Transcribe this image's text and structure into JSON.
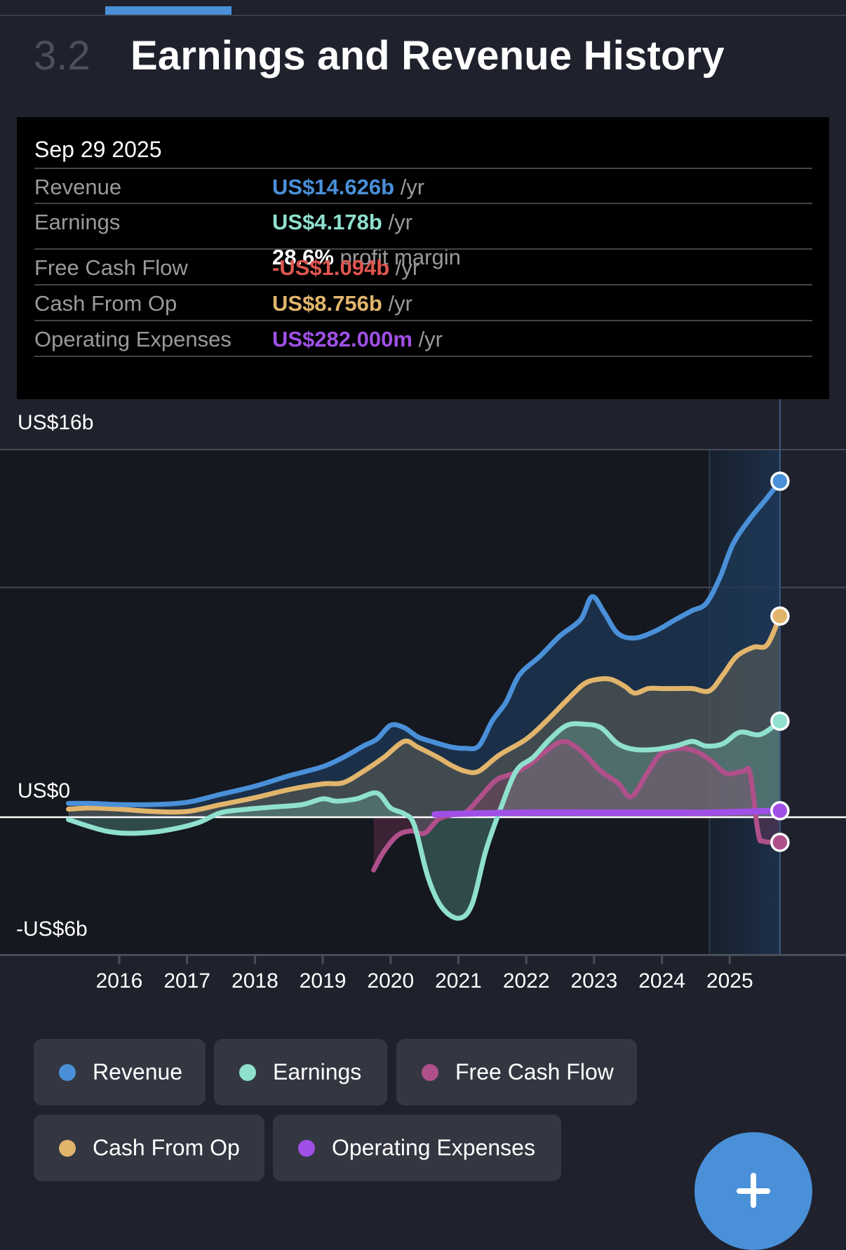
{
  "section": {
    "number": "3.2",
    "title": "Earnings and Revenue History"
  },
  "tooltip": {
    "date": "Sep 29 2025",
    "rows": [
      {
        "label": "Revenue",
        "value": "US$14.626b",
        "unit": "/yr",
        "color": "#4a90d9"
      },
      {
        "label": "Earnings",
        "value": "US$4.178b",
        "unit": "/yr",
        "color": "#8fe0cf",
        "margin_pct": "28.6%",
        "margin_text": "profit margin"
      },
      {
        "label": "Free Cash Flow",
        "value": "-US$1.094b",
        "unit": "/yr",
        "color": "#e0554f"
      },
      {
        "label": "Cash From Op",
        "value": "US$8.756b",
        "unit": "/yr",
        "color": "#e2b56c"
      },
      {
        "label": "Operating Expenses",
        "value": "US$282.000m",
        "unit": "/yr",
        "color": "#a050e6"
      }
    ]
  },
  "legend": [
    {
      "label": "Revenue",
      "color": "#4a90d9"
    },
    {
      "label": "Earnings",
      "color": "#8fe0cf"
    },
    {
      "label": "Free Cash Flow",
      "color": "#b0508a"
    },
    {
      "label": "Cash From Op",
      "color": "#e2b56c"
    },
    {
      "label": "Operating Expenses",
      "color": "#a050e6"
    }
  ],
  "fab": {
    "icon": "plus-icon"
  },
  "chart_data": {
    "type": "line",
    "title": "Earnings and Revenue History",
    "xlabel": "",
    "ylabel": "",
    "y_tick_labels": [
      "US$16b",
      "US$0",
      "-US$6b"
    ],
    "ylim": [
      -6,
      16
    ],
    "y_unit": "US$ billions",
    "gridlines_at": [
      16,
      10
    ],
    "x_tick_labels": [
      "2016",
      "2017",
      "2018",
      "2019",
      "2020",
      "2021",
      "2022",
      "2023",
      "2024",
      "2025"
    ],
    "xlim": [
      2015.25,
      2025.75
    ],
    "highlight_range": [
      2024.7,
      2025.74
    ],
    "cursor_x": 2025.74,
    "legend_position": "bottom",
    "series": [
      {
        "name": "Revenue",
        "color": "#4a90d9",
        "points": [
          [
            2015.25,
            0.6
          ],
          [
            2015.6,
            0.6
          ],
          [
            2016,
            0.55
          ],
          [
            2016.5,
            0.55
          ],
          [
            2017,
            0.65
          ],
          [
            2017.5,
            1.0
          ],
          [
            2018,
            1.35
          ],
          [
            2018.5,
            1.8
          ],
          [
            2019,
            2.2
          ],
          [
            2019.3,
            2.6
          ],
          [
            2019.6,
            3.1
          ],
          [
            2019.8,
            3.4
          ],
          [
            2020,
            4.0
          ],
          [
            2020.2,
            3.9
          ],
          [
            2020.4,
            3.5
          ],
          [
            2020.6,
            3.3
          ],
          [
            2020.9,
            3.05
          ],
          [
            2021.1,
            3.0
          ],
          [
            2021.3,
            3.1
          ],
          [
            2021.5,
            4.2
          ],
          [
            2021.7,
            5.0
          ],
          [
            2021.9,
            6.2
          ],
          [
            2022.2,
            7.0
          ],
          [
            2022.5,
            7.9
          ],
          [
            2022.8,
            8.6
          ],
          [
            2022.97,
            9.6
          ],
          [
            2023.15,
            8.9
          ],
          [
            2023.35,
            8.0
          ],
          [
            2023.6,
            7.8
          ],
          [
            2023.9,
            8.1
          ],
          [
            2024.2,
            8.6
          ],
          [
            2024.45,
            9.0
          ],
          [
            2024.65,
            9.3
          ],
          [
            2024.85,
            10.4
          ],
          [
            2025.05,
            11.9
          ],
          [
            2025.3,
            13.0
          ],
          [
            2025.55,
            13.9
          ],
          [
            2025.74,
            14.626
          ]
        ]
      },
      {
        "name": "Cash From Op",
        "color": "#e2b56c",
        "points": [
          [
            2015.25,
            0.35
          ],
          [
            2015.6,
            0.4
          ],
          [
            2016,
            0.35
          ],
          [
            2016.5,
            0.25
          ],
          [
            2017,
            0.25
          ],
          [
            2017.5,
            0.55
          ],
          [
            2018,
            0.85
          ],
          [
            2018.5,
            1.2
          ],
          [
            2019,
            1.45
          ],
          [
            2019.3,
            1.5
          ],
          [
            2019.6,
            2.0
          ],
          [
            2019.9,
            2.6
          ],
          [
            2020.2,
            3.3
          ],
          [
            2020.4,
            3.05
          ],
          [
            2020.7,
            2.6
          ],
          [
            2020.9,
            2.25
          ],
          [
            2021.1,
            2.0
          ],
          [
            2021.3,
            2.0
          ],
          [
            2021.6,
            2.7
          ],
          [
            2022,
            3.4
          ],
          [
            2022.3,
            4.2
          ],
          [
            2022.6,
            5.1
          ],
          [
            2022.85,
            5.8
          ],
          [
            2023.05,
            6.0
          ],
          [
            2023.25,
            6.0
          ],
          [
            2023.45,
            5.7
          ],
          [
            2023.6,
            5.4
          ],
          [
            2023.8,
            5.6
          ],
          [
            2024,
            5.6
          ],
          [
            2024.2,
            5.6
          ],
          [
            2024.45,
            5.6
          ],
          [
            2024.7,
            5.5
          ],
          [
            2024.9,
            6.2
          ],
          [
            2025.1,
            7.0
          ],
          [
            2025.35,
            7.4
          ],
          [
            2025.55,
            7.5
          ],
          [
            2025.74,
            8.756
          ]
        ]
      },
      {
        "name": "Earnings",
        "color": "#8fe0cf",
        "points": [
          [
            2015.25,
            -0.1
          ],
          [
            2015.5,
            -0.35
          ],
          [
            2015.8,
            -0.6
          ],
          [
            2016.1,
            -0.7
          ],
          [
            2016.5,
            -0.65
          ],
          [
            2016.9,
            -0.45
          ],
          [
            2017.2,
            -0.2
          ],
          [
            2017.5,
            0.2
          ],
          [
            2017.9,
            0.35
          ],
          [
            2018.3,
            0.45
          ],
          [
            2018.7,
            0.55
          ],
          [
            2019,
            0.8
          ],
          [
            2019.2,
            0.7
          ],
          [
            2019.5,
            0.8
          ],
          [
            2019.8,
            1.05
          ],
          [
            2020,
            0.4
          ],
          [
            2020.2,
            0.15
          ],
          [
            2020.35,
            -0.35
          ],
          [
            2020.55,
            -2.6
          ],
          [
            2020.75,
            -3.9
          ],
          [
            2021,
            -4.4
          ],
          [
            2021.2,
            -3.8
          ],
          [
            2021.4,
            -1.5
          ],
          [
            2021.6,
            0.2
          ],
          [
            2021.85,
            2.0
          ],
          [
            2022.1,
            2.6
          ],
          [
            2022.35,
            3.4
          ],
          [
            2022.6,
            4.0
          ],
          [
            2022.85,
            4.05
          ],
          [
            2023.1,
            3.9
          ],
          [
            2023.35,
            3.2
          ],
          [
            2023.6,
            2.95
          ],
          [
            2023.9,
            2.95
          ],
          [
            2024.2,
            3.1
          ],
          [
            2024.45,
            3.3
          ],
          [
            2024.65,
            3.1
          ],
          [
            2024.9,
            3.2
          ],
          [
            2025.15,
            3.7
          ],
          [
            2025.45,
            3.6
          ],
          [
            2025.74,
            4.178
          ]
        ]
      },
      {
        "name": "Free Cash Flow",
        "color": "#b0508a",
        "points": [
          [
            2019.75,
            -2.3
          ],
          [
            2019.9,
            -1.5
          ],
          [
            2020.1,
            -0.8
          ],
          [
            2020.3,
            -0.6
          ],
          [
            2020.5,
            -0.7
          ],
          [
            2020.7,
            -0.1
          ],
          [
            2020.9,
            0.1
          ],
          [
            2021.1,
            0.2
          ],
          [
            2021.3,
            0.8
          ],
          [
            2021.55,
            1.6
          ],
          [
            2021.8,
            1.9
          ],
          [
            2022.05,
            2.3
          ],
          [
            2022.3,
            2.9
          ],
          [
            2022.55,
            3.3
          ],
          [
            2022.8,
            2.9
          ],
          [
            2023.1,
            2.0
          ],
          [
            2023.35,
            1.5
          ],
          [
            2023.55,
            0.9
          ],
          [
            2023.8,
            2.0
          ],
          [
            2024,
            2.8
          ],
          [
            2024.3,
            3.0
          ],
          [
            2024.55,
            2.8
          ],
          [
            2024.75,
            2.4
          ],
          [
            2024.95,
            1.9
          ],
          [
            2025.2,
            2.0
          ],
          [
            2025.3,
            1.9
          ],
          [
            2025.42,
            -0.7
          ],
          [
            2025.5,
            -1.05
          ],
          [
            2025.74,
            -1.094
          ]
        ]
      },
      {
        "name": "Operating Expenses",
        "color": "#a050e6",
        "points": [
          [
            2020.65,
            0.12
          ],
          [
            2021,
            0.15
          ],
          [
            2022,
            0.2
          ],
          [
            2023,
            0.2
          ],
          [
            2024,
            0.2
          ],
          [
            2024.7,
            0.2
          ],
          [
            2025.74,
            0.282
          ]
        ]
      }
    ]
  }
}
